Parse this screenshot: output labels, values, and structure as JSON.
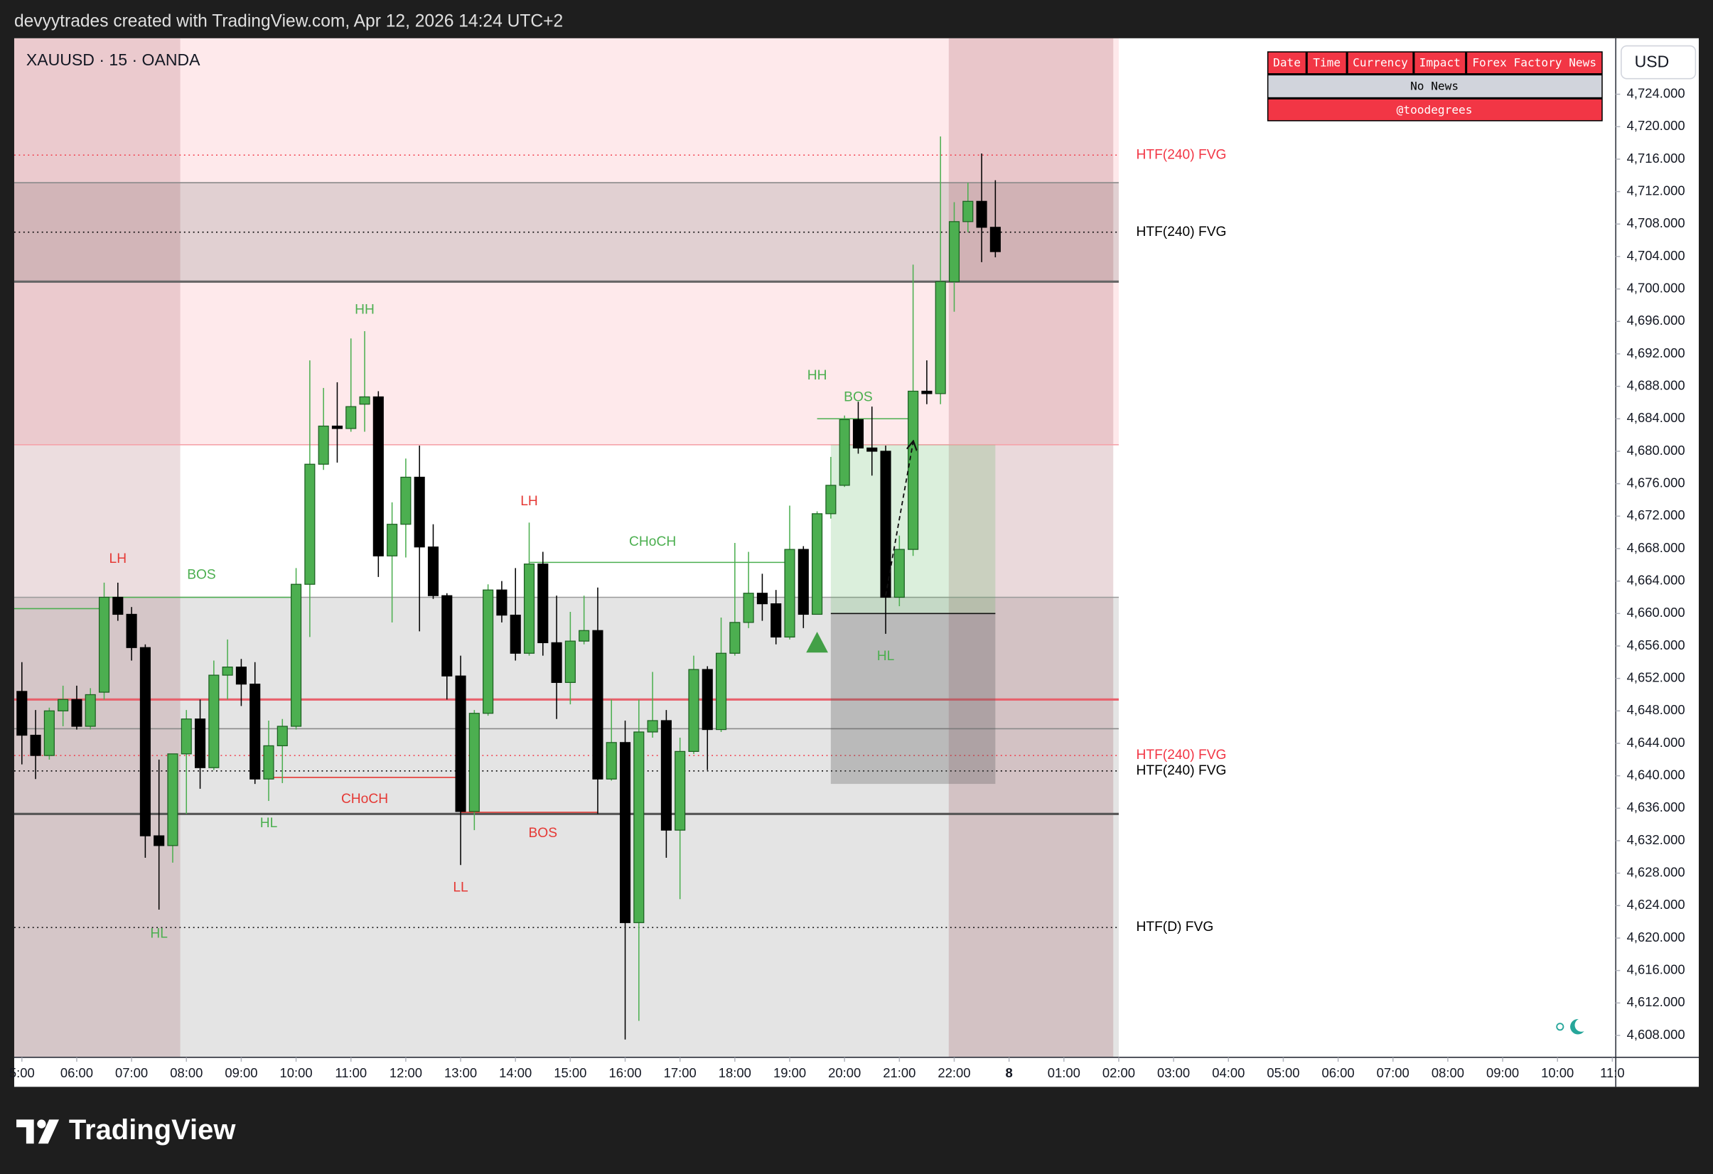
{
  "header": {
    "credit": "devyytrades created with TradingView.com, Apr 12, 2026 14:24 UTC+2",
    "symbol": "XAUUSD · 15 · OANDA",
    "currency": "USD"
  },
  "news_table": {
    "columns": [
      "Date",
      "Time",
      "Currency",
      "Impact",
      "Forex Factory News"
    ],
    "row": "No News",
    "footer": "@toodegrees"
  },
  "brand": "TradingView",
  "chart_data": {
    "type": "candlestick",
    "up_color": "#4caf50",
    "down_color": "#000000",
    "open": [
      4650.4,
      4645.0,
      4642.5,
      4648.0,
      4649.4,
      4646.1,
      4650.3,
      4662.0,
      4659.9,
      4655.8,
      4632.6,
      4631.4,
      4642.7,
      4647.0,
      4641.0,
      4652.4,
      4653.4,
      4651.3,
      4639.6,
      4643.7,
      4646.1,
      4663.6,
      4678.4,
      4683.1,
      4682.8,
      4685.8,
      4686.7,
      4667.1,
      4671.0,
      4676.8,
      4668.2,
      4662.2,
      4652.3,
      4635.6,
      4647.7,
      4662.9,
      4659.8,
      4655.1,
      4666.1,
      4656.4,
      4651.5,
      4656.6,
      4657.9,
      4639.6,
      4644.1,
      4621.9,
      4645.4,
      4646.8,
      4633.3,
      4643.0,
      4653.1,
      4645.7,
      4655.1,
      4658.9,
      4662.5,
      4661.2,
      4657.1,
      4667.9,
      4659.9,
      4672.3,
      4675.8,
      4683.9,
      4680.4,
      4680.0,
      4662.0,
      4667.9,
      4687.4,
      4687.1,
      4700.9,
      4708.3,
      4710.8,
      4707.6
    ],
    "high": [
      4654.0,
      4648.1,
      4648.4,
      4651.1,
      4651.1,
      4650.8,
      4663.8,
      4663.8,
      4660.8,
      4656.2,
      4642.0,
      4642.7,
      4648.1,
      4649.4,
      4654.2,
      4656.8,
      4654.4,
      4654.0,
      4646.8,
      4647.0,
      4665.6,
      4691.2,
      4687.8,
      4688.5,
      4693.9,
      4694.8,
      4687.4,
      4673.7,
      4679.1,
      4680.7,
      4671.0,
      4662.5,
      4654.8,
      4648.1,
      4663.6,
      4664.0,
      4665.6,
      4671.2,
      4667.6,
      4662.2,
      4660.2,
      4662.2,
      4663.2,
      4649.4,
      4646.8,
      4649.4,
      4652.8,
      4648.1,
      4644.7,
      4654.8,
      4653.5,
      4659.5,
      4668.7,
      4667.6,
      4664.9,
      4662.9,
      4673.3,
      4668.3,
      4672.6,
      4679.3,
      4684.4,
      4686.1,
      4685.5,
      4680.7,
      4669.6,
      4703.0,
      4691.2,
      4718.8,
      4710.7,
      4713.1,
      4716.7,
      4713.4
    ],
    "low": [
      4641.4,
      4639.6,
      4642.0,
      4646.1,
      4645.7,
      4645.7,
      4649.4,
      4659.1,
      4654.2,
      4629.9,
      4623.5,
      4629.3,
      4635.3,
      4638.4,
      4640.7,
      4649.4,
      4648.6,
      4639.0,
      4636.9,
      4639.1,
      4645.7,
      4657.1,
      4677.7,
      4678.6,
      4682.4,
      4682.4,
      4664.5,
      4658.9,
      4666.9,
      4657.8,
      4661.8,
      4649.4,
      4629.0,
      4633.3,
      4647.4,
      4658.9,
      4654.2,
      4654.8,
      4654.8,
      4647.0,
      4648.8,
      4656.2,
      4635.3,
      4639.4,
      4607.5,
      4609.8,
      4644.7,
      4629.9,
      4624.8,
      4642.7,
      4640.7,
      4645.4,
      4654.8,
      4658.2,
      4659.1,
      4656.2,
      4656.8,
      4658.2,
      4659.9,
      4671.7,
      4675.6,
      4679.7,
      4677.0,
      4657.5,
      4660.9,
      4667.1,
      4685.8,
      4685.8,
      4697.2,
      4707.0,
      4703.3,
      4703.9
    ],
    "close": [
      4645.0,
      4642.5,
      4648.0,
      4649.4,
      4646.1,
      4650.0,
      4662.0,
      4659.9,
      4655.8,
      4632.6,
      4631.4,
      4642.7,
      4647.0,
      4641.0,
      4652.4,
      4653.4,
      4651.3,
      4639.6,
      4643.7,
      4646.1,
      4663.6,
      4678.4,
      4683.1,
      4682.8,
      4685.5,
      4686.7,
      4667.1,
      4671.0,
      4676.8,
      4668.2,
      4662.2,
      4652.3,
      4635.6,
      4647.7,
      4662.9,
      4659.8,
      4655.1,
      4666.1,
      4656.4,
      4651.5,
      4656.6,
      4657.9,
      4639.6,
      4644.1,
      4621.9,
      4645.4,
      4646.8,
      4633.3,
      4643.0,
      4653.1,
      4645.7,
      4655.1,
      4658.9,
      4662.5,
      4661.2,
      4657.1,
      4667.9,
      4659.9,
      4672.3,
      4675.8,
      4683.9,
      4680.4,
      4680.0,
      4662.0,
      4667.9,
      4687.4,
      4687.1,
      4700.9,
      4708.3,
      4710.8,
      4707.6,
      4704.6
    ],
    "xlim": [
      -0.56,
      116.17
    ],
    "xticks": [
      {
        "value": 0,
        "label": "5:00"
      },
      {
        "value": 4,
        "label": "06:00"
      },
      {
        "value": 8,
        "label": "07:00"
      },
      {
        "value": 12,
        "label": "08:00"
      },
      {
        "value": 16,
        "label": "09:00"
      },
      {
        "value": 20,
        "label": "10:00"
      },
      {
        "value": 24,
        "label": "11:00"
      },
      {
        "value": 28,
        "label": "12:00"
      },
      {
        "value": 32,
        "label": "13:00"
      },
      {
        "value": 36,
        "label": "14:00"
      },
      {
        "value": 40,
        "label": "15:00"
      },
      {
        "value": 44,
        "label": "16:00"
      },
      {
        "value": 48,
        "label": "17:00"
      },
      {
        "value": 52,
        "label": "18:00"
      },
      {
        "value": 56,
        "label": "19:00"
      },
      {
        "value": 60,
        "label": "20:00"
      },
      {
        "value": 64,
        "label": "21:00"
      },
      {
        "value": 68,
        "label": "22:00"
      },
      {
        "value": 72,
        "label": "8",
        "bold": true
      },
      {
        "value": 76,
        "label": "01:00"
      },
      {
        "value": 80,
        "label": "02:00"
      },
      {
        "value": 84,
        "label": "03:00"
      },
      {
        "value": 88,
        "label": "04:00"
      },
      {
        "value": 92,
        "label": "05:00"
      },
      {
        "value": 96,
        "label": "06:00"
      },
      {
        "value": 100,
        "label": "07:00"
      },
      {
        "value": 104,
        "label": "08:00"
      },
      {
        "value": 108,
        "label": "09:00"
      },
      {
        "value": 112,
        "label": "10:00"
      },
      {
        "value": 116,
        "label": "11:0"
      }
    ],
    "ylim": [
      4605.3,
      4730.9
    ],
    "yticks": [
      {
        "value": 4608,
        "label": "4,608.000"
      },
      {
        "value": 4612,
        "label": "4,612.000"
      },
      {
        "value": 4616,
        "label": "4,616.000"
      },
      {
        "value": 4620,
        "label": "4,620.000"
      },
      {
        "value": 4624,
        "label": "4,624.000"
      },
      {
        "value": 4628,
        "label": "4,628.000"
      },
      {
        "value": 4632,
        "label": "4,632.000"
      },
      {
        "value": 4636,
        "label": "4,636.000"
      },
      {
        "value": 4640,
        "label": "4,640.000"
      },
      {
        "value": 4644,
        "label": "4,644.000"
      },
      {
        "value": 4648,
        "label": "4,648.000"
      },
      {
        "value": 4652,
        "label": "4,652.000"
      },
      {
        "value": 4656,
        "label": "4,656.000"
      },
      {
        "value": 4660,
        "label": "4,660.000"
      },
      {
        "value": 4664,
        "label": "4,664.000"
      },
      {
        "value": 4668,
        "label": "4,668.000"
      },
      {
        "value": 4672,
        "label": "4,672.000"
      },
      {
        "value": 4676,
        "label": "4,676.000"
      },
      {
        "value": 4680,
        "label": "4,680.000"
      },
      {
        "value": 4684,
        "label": "4,684.000"
      },
      {
        "value": 4688,
        "label": "4,688.000"
      },
      {
        "value": 4692,
        "label": "4,692.000"
      },
      {
        "value": 4696,
        "label": "4,696.000"
      },
      {
        "value": 4700,
        "label": "4,700.000"
      },
      {
        "value": 4704,
        "label": "4,704.000"
      },
      {
        "value": 4708,
        "label": "4,708.000"
      },
      {
        "value": 4712,
        "label": "4,712.000"
      },
      {
        "value": 4716,
        "label": "4,716.000"
      },
      {
        "value": 4720,
        "label": "4,720.000"
      },
      {
        "value": 4724,
        "label": "4,724.000"
      }
    ],
    "grid": false,
    "zones": [
      {
        "y": [
          4680.8,
          4730.9
        ],
        "x": [
          -0.56,
          80
        ],
        "color": "rgba(242,54,69,0.11)"
      },
      {
        "y": [
          4700.9,
          4713.1
        ],
        "x": [
          -0.56,
          80
        ],
        "color": "rgba(110,110,110,0.2)"
      },
      {
        "y": [
          4605.3,
          4662.0
        ],
        "x": [
          -0.56,
          80
        ],
        "color": "rgba(110,110,110,0.19)"
      }
    ],
    "sessions": [
      {
        "x": [
          -0.56,
          11.55
        ],
        "color": "rgba(130,30,40,0.15)"
      },
      {
        "x": [
          67.6,
          79.6
        ],
        "color": "rgba(130,30,40,0.17)"
      }
    ],
    "levels": [
      {
        "y": 4716.5,
        "x": [
          -0.56,
          80
        ],
        "color": "#f23645",
        "style": "dotted",
        "label": "HTF(240) FVG"
      },
      {
        "y": 4707.0,
        "x": [
          -0.56,
          80
        ],
        "color": "#000000",
        "style": "dotted",
        "label": "HTF(240) FVG"
      },
      {
        "y": 4642.5,
        "x": [
          -0.56,
          80
        ],
        "color": "#f23645",
        "style": "dotted",
        "label": "HTF(240) FVG"
      },
      {
        "y": 4640.6,
        "x": [
          -0.56,
          80
        ],
        "color": "#000000",
        "style": "dotted",
        "label": "HTF(240) FVG"
      },
      {
        "y": 4621.3,
        "x": [
          -0.56,
          80
        ],
        "color": "#000000",
        "style": "dotted",
        "label": "HTF(D) FVG"
      },
      {
        "y": 4713.1,
        "x": [
          -0.56,
          80
        ],
        "color": "#8a8a8a",
        "style": "solid"
      },
      {
        "y": 4700.9,
        "x": [
          -0.56,
          80
        ],
        "color": "#666666",
        "style": "bold"
      },
      {
        "y": 4680.8,
        "x": [
          -0.56,
          80
        ],
        "color": "#f5a3aa",
        "style": "solid"
      },
      {
        "y": 4662.0,
        "x": [
          -0.56,
          80
        ],
        "color": "#9a9a9a",
        "style": "solid"
      },
      {
        "y": 4649.4,
        "x": [
          -0.56,
          80
        ],
        "color": "#e8606b",
        "style": "bold"
      },
      {
        "y": 4645.8,
        "x": [
          -0.56,
          80
        ],
        "color": "#8a8a8a",
        "style": "solid"
      },
      {
        "y": 4635.3,
        "x": [
          -0.56,
          80
        ],
        "color": "#555555",
        "style": "bold"
      }
    ],
    "structure": [
      {
        "x": [
          -0.56,
          6
        ],
        "y": 4660.6,
        "color": "#4caf50"
      },
      {
        "x": [
          6,
          20
        ],
        "y": 4662.0,
        "color": "#4caf50"
      },
      {
        "x": [
          18,
          32
        ],
        "y": 4639.8,
        "color": "#e53935"
      },
      {
        "x": [
          32,
          42
        ],
        "y": 4635.5,
        "color": "#e53935"
      },
      {
        "x": [
          37,
          56
        ],
        "y": 4666.3,
        "color": "#4caf50"
      },
      {
        "x": [
          58,
          65
        ],
        "y": 4684.0,
        "color": "#4caf50"
      }
    ],
    "annotations": [
      {
        "text": "LH",
        "x": 7,
        "y": 4666.7,
        "color": "#e53935"
      },
      {
        "text": "BOS",
        "x": 13.1,
        "y": 4664.7,
        "color": "#4caf50"
      },
      {
        "text": "HH",
        "x": 25,
        "y": 4697.4,
        "color": "#4caf50"
      },
      {
        "text": "HL",
        "x": 18,
        "y": 4634.1,
        "color": "#4caf50"
      },
      {
        "text": "HL",
        "x": 10,
        "y": 4620.5,
        "color": "#4caf50"
      },
      {
        "text": "CHoCH",
        "x": 25,
        "y": 4637.1,
        "color": "#e53935"
      },
      {
        "text": "LL",
        "x": 32,
        "y": 4626.2,
        "color": "#e53935"
      },
      {
        "text": "LH",
        "x": 37,
        "y": 4673.8,
        "color": "#e53935"
      },
      {
        "text": "BOS",
        "x": 38,
        "y": 4632.9,
        "color": "#e53935"
      },
      {
        "text": "CHoCH",
        "x": 46,
        "y": 4668.8,
        "color": "#4caf50"
      },
      {
        "text": "HH",
        "x": 58,
        "y": 4689.3,
        "color": "#4caf50"
      },
      {
        "text": "BOS",
        "x": 61,
        "y": 4686.6,
        "color": "#4caf50"
      },
      {
        "text": "HL",
        "x": 63,
        "y": 4654.7,
        "color": "#4caf50"
      }
    ],
    "position": {
      "x": [
        59,
        71
      ],
      "entry": 4660.0,
      "target": 4680.8,
      "stop": 4639.0,
      "target_color": "rgba(76,175,80,0.2)",
      "stop_color": "rgba(90,90,90,0.3)"
    },
    "marker": {
      "x": 58,
      "y": 4656.4,
      "color": "#43a047"
    },
    "arrow": {
      "x": [
        63,
        65
      ],
      "y": [
        4662.2,
        4681.1
      ]
    }
  }
}
